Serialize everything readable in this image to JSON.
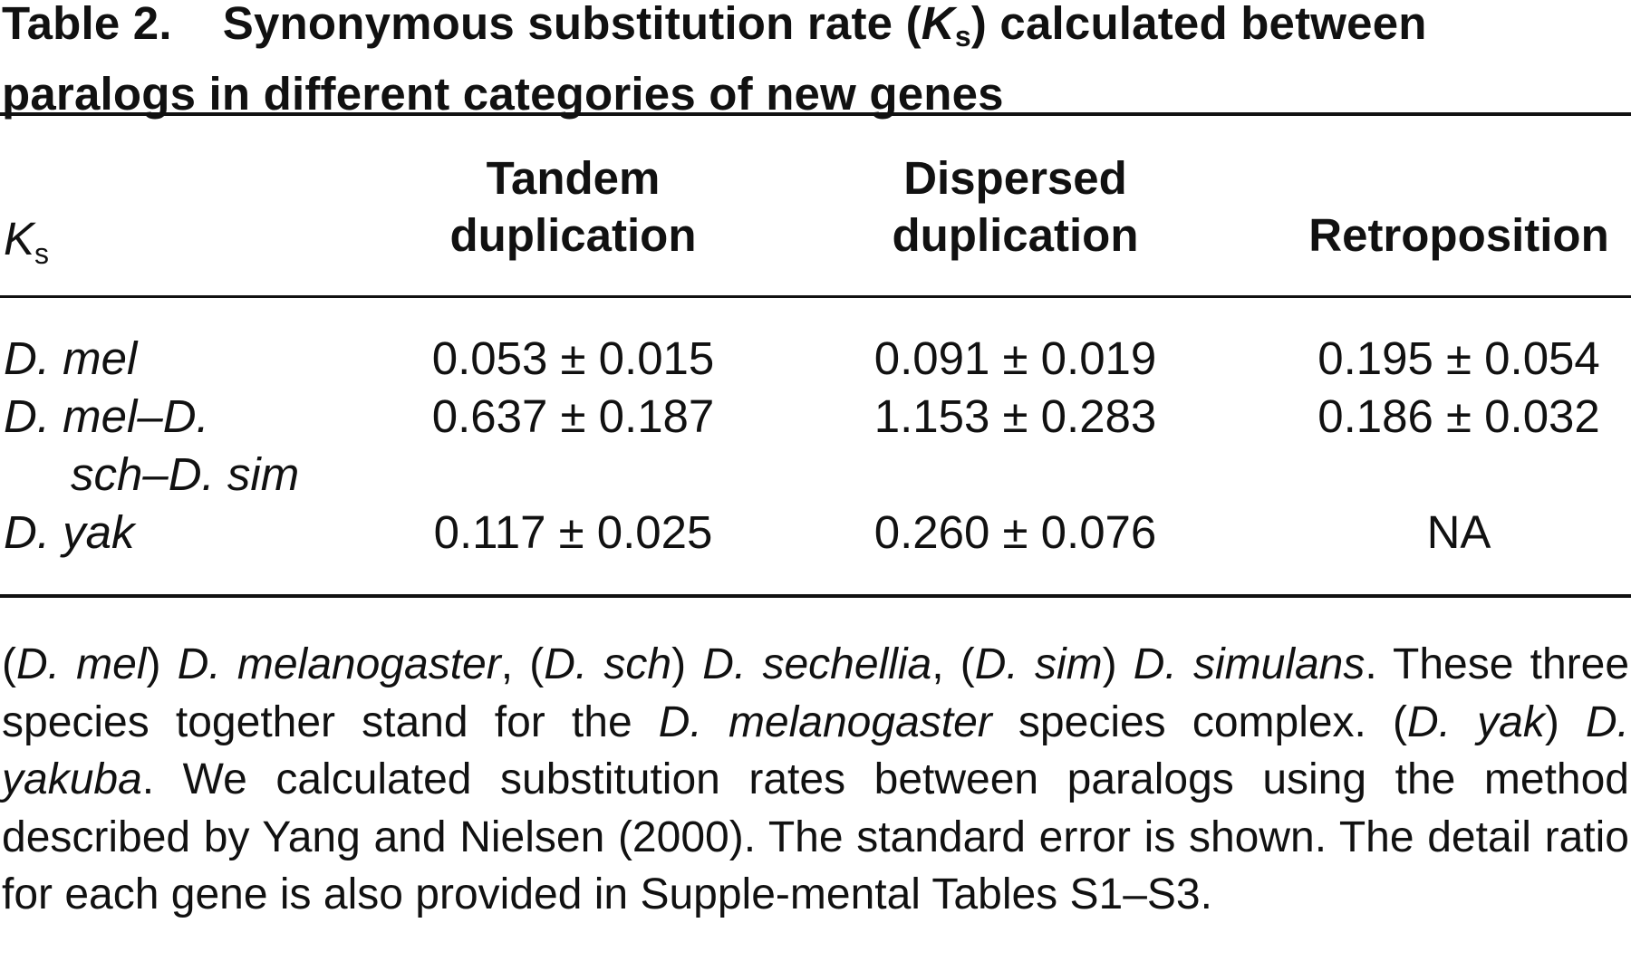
{
  "table": {
    "label": "Table 2.",
    "title_before": "Synonymous substitution rate (",
    "title_symbol": "K",
    "title_sub": "s",
    "title_after": ") calculated between paralogs in different categories of new genes",
    "ks_symbol": "K",
    "ks_sub": "s",
    "columns": [
      {
        "line1": "Tandem",
        "line2": "duplication"
      },
      {
        "line1": "Dispersed",
        "line2": "duplication"
      },
      {
        "line1": "",
        "line2": "Retroposition"
      }
    ],
    "rows": [
      {
        "label_line1": "D. mel",
        "label_line2": "",
        "values": [
          "0.053 ± 0.015",
          "0.091 ± 0.019",
          "0.195 ± 0.054"
        ]
      },
      {
        "label_line1": "D. mel–D.",
        "label_line2": "sch–D. sim",
        "values": [
          "0.637 ± 0.187",
          "1.153 ± 0.283",
          "0.186 ± 0.032"
        ]
      },
      {
        "label_line1": "D. yak",
        "label_line2": "",
        "values": [
          "0.117 ± 0.025",
          "0.260 ± 0.076",
          "NA"
        ]
      }
    ]
  },
  "footnote": {
    "p1": "(",
    "i1": "D. mel",
    "p2": ") ",
    "i2": "D. melanogaster",
    "p3": ", (",
    "i3": "D. sch",
    "p4": ") ",
    "i4": "D. sechellia",
    "p5": ", (",
    "i5": "D. sim",
    "p6": ") ",
    "i6": "D. simulans",
    "p7": ". These three species together stand for the ",
    "i7": "D. melanogaster",
    "p8": " species complex. (",
    "i8": "D. yak",
    "p9": ") ",
    "i9": "D. yakuba",
    "p10": ". We calculated substitution rates between paralogs using the method described by Yang and Nielsen (2000). The standard error is shown. The detail ratio for each gene is also provided in Supple-mental Tables S1–S3."
  }
}
